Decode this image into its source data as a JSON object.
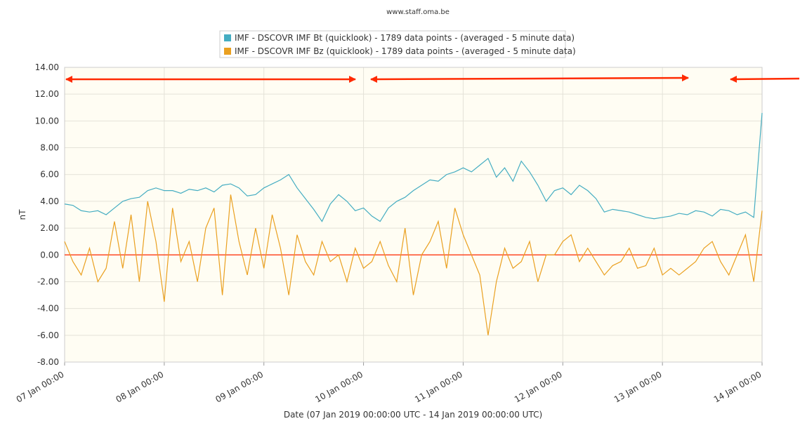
{
  "chart_data": {
    "type": "line",
    "title": "www.staff.oma.be",
    "ylabel": "nT",
    "xlabel": "Date (07 Jan 2019 00:00:00 UTC - 14 Jan 2019 00:00:00 UTC)",
    "x": [
      0,
      2,
      4,
      6,
      8,
      10,
      12,
      14,
      16,
      18,
      20,
      22,
      24,
      26,
      28,
      30,
      32,
      34,
      36,
      38,
      40,
      42,
      44,
      46,
      48,
      50,
      52,
      54,
      56,
      58,
      60,
      62,
      64,
      66,
      68,
      70,
      72,
      74,
      76,
      78,
      80,
      82,
      84,
      86,
      88,
      90,
      92,
      94,
      96,
      98,
      100,
      102,
      104,
      106,
      108,
      110,
      112,
      114,
      116,
      118,
      120,
      122,
      124,
      126,
      128,
      130,
      132,
      134,
      136,
      138,
      140,
      142,
      144,
      146,
      148,
      150,
      152,
      154,
      156,
      158,
      160,
      162,
      164,
      166,
      168
    ],
    "xlim": [
      0,
      168
    ],
    "xticks": [
      {
        "value": 0,
        "label": "07 Jan 00:00"
      },
      {
        "value": 24,
        "label": "08 Jan 00:00"
      },
      {
        "value": 48,
        "label": "09 Jan 00:00"
      },
      {
        "value": 72,
        "label": "10 Jan 00:00"
      },
      {
        "value": 96,
        "label": "11 Jan 00:00"
      },
      {
        "value": 120,
        "label": "12 Jan 00:00"
      },
      {
        "value": 144,
        "label": "13 Jan 00:00"
      },
      {
        "value": 168,
        "label": "14 Jan 00:00"
      }
    ],
    "ylim": [
      -8,
      14
    ],
    "yticks": [
      {
        "value": 14,
        "label": "14.00"
      },
      {
        "value": 12,
        "label": "12.00"
      },
      {
        "value": 10,
        "label": "10.00"
      },
      {
        "value": 8,
        "label": "8.00"
      },
      {
        "value": 6,
        "label": "6.00"
      },
      {
        "value": 4,
        "label": "4.00"
      },
      {
        "value": 2,
        "label": "2.00"
      },
      {
        "value": 0,
        "label": "0.00"
      },
      {
        "value": -2,
        "label": "-2.00"
      },
      {
        "value": -4,
        "label": "-4.00"
      },
      {
        "value": -6,
        "label": "-6.00"
      },
      {
        "value": -8,
        "label": "-8.00"
      }
    ],
    "grid": true,
    "reference_line": {
      "value": 0,
      "color": "#ff2a00"
    },
    "series": [
      {
        "name": "IMF - DSCOVR IMF Bt (quicklook) - 1789 data points -  (averaged - 5 minute data)",
        "color": "#45adc2",
        "values": [
          3.8,
          3.7,
          3.3,
          3.2,
          3.3,
          3.0,
          3.5,
          4.0,
          4.2,
          4.3,
          4.8,
          5.0,
          4.8,
          4.8,
          4.6,
          4.9,
          4.8,
          5.0,
          4.7,
          5.2,
          5.3,
          5.0,
          4.4,
          4.5,
          5.0,
          5.3,
          5.6,
          6.0,
          5.0,
          4.2,
          3.4,
          2.5,
          3.8,
          4.5,
          4.0,
          3.3,
          3.5,
          2.9,
          2.5,
          3.5,
          4.0,
          4.3,
          4.8,
          5.2,
          5.6,
          5.5,
          6.0,
          6.2,
          6.5,
          6.2,
          6.7,
          7.2,
          5.8,
          6.5,
          5.5,
          7.0,
          6.2,
          5.2,
          4.0,
          4.8,
          5.0,
          4.5,
          5.2,
          4.8,
          4.2,
          3.2,
          3.4,
          3.3,
          3.2,
          3.0,
          2.8,
          2.7,
          2.8,
          2.9,
          3.1,
          3.0,
          3.3,
          3.2,
          2.9,
          3.4,
          3.3,
          3.0,
          3.2,
          2.8,
          10.6
        ]
      },
      {
        "name": "IMF - DSCOVR IMF Bz (quicklook) - 1789 data points -  (averaged - 5 minute data)",
        "color": "#eaa020",
        "values": [
          1.0,
          -0.5,
          -1.5,
          0.5,
          -2.0,
          -1.0,
          2.5,
          -1.0,
          3.0,
          -2.0,
          4.0,
          1.0,
          -3.5,
          3.5,
          -0.5,
          1.0,
          -2.0,
          2.0,
          3.5,
          -3.0,
          4.5,
          1.0,
          -1.5,
          2.0,
          -1.0,
          3.0,
          0.5,
          -3.0,
          1.5,
          -0.5,
          -1.5,
          1.0,
          -0.5,
          0.0,
          -2.0,
          0.5,
          -1.0,
          -0.5,
          1.0,
          -0.8,
          -2.0,
          2.0,
          -3.0,
          0.0,
          1.0,
          2.5,
          -1.0,
          3.5,
          1.5,
          0.0,
          -1.5,
          -6.0,
          -2.0,
          0.5,
          -1.0,
          -0.5,
          1.0,
          -2.0,
          0.0,
          0.0,
          1.0,
          1.5,
          -0.5,
          0.5,
          -0.5,
          -1.5,
          -0.8,
          -0.5,
          0.5,
          -1.0,
          -0.8,
          0.5,
          -1.5,
          -1.0,
          -1.5,
          -1.0,
          -0.5,
          0.5,
          1.0,
          -0.5,
          -1.5,
          0.0,
          1.5,
          -2.0,
          3.3
        ]
      }
    ]
  }
}
